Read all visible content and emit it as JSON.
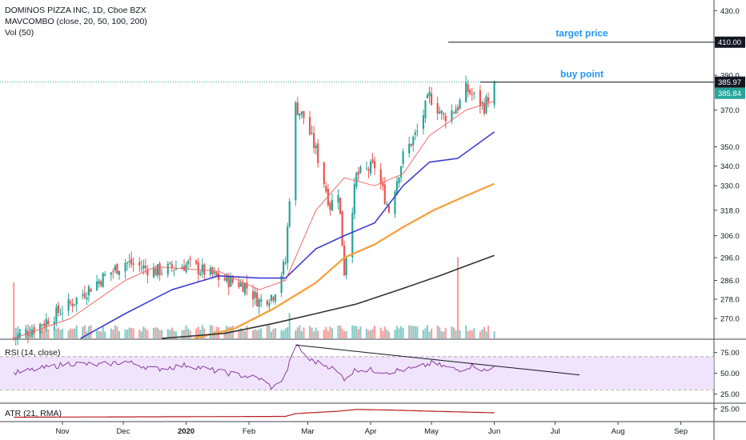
{
  "header": {
    "title": "DOMINOS PIZZA INC, 1D, Cboe BZX",
    "indicator_1": "MAVCOMBO (close, 20, 50, 100, 200)",
    "indicator_2": "Vol (50)"
  },
  "colors": {
    "up": "#26a69a",
    "down": "#ef5350",
    "ma20": "#f06a6a",
    "ma50": "#3f3fd0",
    "ma100": "#f5a442",
    "ma200": "#333333",
    "rsi": "#8a3d9e",
    "rsi_band": "#ead8fb",
    "atr": "#b71c1c",
    "annotation": "#2196f3"
  },
  "chart_data": [
    {
      "type": "candlestick",
      "title": "DOMINOS PIZZA INC, 1D, Cboe BZX",
      "y_scale": "log",
      "ylim": [
        262,
        437
      ],
      "y_ticks": [
        430,
        410,
        390,
        370,
        350,
        340,
        330,
        318,
        306,
        296,
        286,
        278,
        270
      ],
      "x_ticks": [
        "Nov",
        "Dec",
        "2020",
        "Feb",
        "Mar",
        "Apr",
        "May",
        "Jun",
        "Jul",
        "Aug",
        "Sep"
      ],
      "price_labels": {
        "last": "385.97",
        "second": "385.84",
        "target": "410.00"
      },
      "annotations": [
        {
          "text": "target price",
          "value": 410.0
        },
        {
          "text": "buy point",
          "value": 385.97
        }
      ],
      "anchors": [
        {
          "date": "2019-10-08",
          "close": 262
        },
        {
          "date": "2019-10-22",
          "close": 268
        },
        {
          "date": "2019-11-05",
          "close": 276
        },
        {
          "date": "2019-11-19",
          "close": 286
        },
        {
          "date": "2019-12-02",
          "close": 294
        },
        {
          "date": "2019-12-17",
          "close": 290
        },
        {
          "date": "2020-01-02",
          "close": 293
        },
        {
          "date": "2020-01-17",
          "close": 287
        },
        {
          "date": "2020-01-30",
          "close": 284
        },
        {
          "date": "2020-02-06",
          "close": 277
        },
        {
          "date": "2020-02-13",
          "close": 280
        },
        {
          "date": "2020-02-19",
          "close": 294
        },
        {
          "date": "2020-02-24",
          "close": 372
        },
        {
          "date": "2020-02-28",
          "close": 366
        },
        {
          "date": "2020-03-05",
          "close": 348
        },
        {
          "date": "2020-03-12",
          "close": 320
        },
        {
          "date": "2020-03-16",
          "close": 328
        },
        {
          "date": "2020-03-19",
          "close": 290
        },
        {
          "date": "2020-03-25",
          "close": 335
        },
        {
          "date": "2020-04-03",
          "close": 340
        },
        {
          "date": "2020-04-10",
          "close": 318
        },
        {
          "date": "2020-04-17",
          "close": 345
        },
        {
          "date": "2020-04-24",
          "close": 358
        },
        {
          "date": "2020-04-30",
          "close": 378
        },
        {
          "date": "2020-05-07",
          "close": 366
        },
        {
          "date": "2020-05-14",
          "close": 372
        },
        {
          "date": "2020-05-18",
          "close": 382
        },
        {
          "date": "2020-05-27",
          "close": 372
        },
        {
          "date": "2020-06-01",
          "close": 386
        }
      ],
      "moving_averages": [
        {
          "name": "MA 20",
          "points": [
            [
              "2019-10-08",
              262
            ],
            [
              "2019-11-05",
              270
            ],
            [
              "2019-12-02",
              286
            ],
            [
              "2019-12-17",
              292
            ],
            [
              "2020-01-17",
              290
            ],
            [
              "2020-02-06",
              282
            ],
            [
              "2020-02-19",
              286
            ],
            [
              "2020-03-05",
              318
            ],
            [
              "2020-03-19",
              334
            ],
            [
              "2020-04-03",
              330
            ],
            [
              "2020-04-17",
              336
            ],
            [
              "2020-04-30",
              356
            ],
            [
              "2020-05-18",
              370
            ],
            [
              "2020-06-01",
              375
            ]
          ]
        },
        {
          "name": "MA 50",
          "points": [
            [
              "2019-11-10",
              262
            ],
            [
              "2019-12-02",
              272
            ],
            [
              "2019-12-25",
              282
            ],
            [
              "2020-01-17",
              288
            ],
            [
              "2020-02-06",
              287
            ],
            [
              "2020-02-19",
              287
            ],
            [
              "2020-03-05",
              300
            ],
            [
              "2020-03-19",
              306
            ],
            [
              "2020-04-03",
              312
            ],
            [
              "2020-04-17",
              330
            ],
            [
              "2020-04-30",
              342
            ],
            [
              "2020-05-14",
              344
            ],
            [
              "2020-06-01",
              358
            ]
          ]
        },
        {
          "name": "MA 100",
          "points": [
            [
              "2020-01-05",
              262
            ],
            [
              "2020-01-25",
              266
            ],
            [
              "2020-02-13",
              274
            ],
            [
              "2020-03-05",
              285
            ],
            [
              "2020-03-19",
              296
            ],
            [
              "2020-04-03",
              302
            ],
            [
              "2020-04-17",
              310
            ],
            [
              "2020-05-02",
              318
            ],
            [
              "2020-05-18",
              325
            ],
            [
              "2020-06-01",
              331
            ]
          ]
        },
        {
          "name": "MA 200",
          "points": [
            [
              "2019-12-20",
              262
            ],
            [
              "2020-01-20",
              264
            ],
            [
              "2020-02-13",
              268
            ],
            [
              "2020-03-05",
              272
            ],
            [
              "2020-03-25",
              276
            ],
            [
              "2020-04-15",
              282
            ],
            [
              "2020-05-05",
              288
            ],
            [
              "2020-05-20",
              293
            ],
            [
              "2020-06-01",
              297
            ]
          ]
        }
      ]
    },
    {
      "type": "bar",
      "title": "Vol (50)",
      "note": "volume bars rise from the bottom of the price pane",
      "spikes": [
        {
          "date": "2019-10-08",
          "relative": 1.0
        },
        {
          "date": "2020-02-21",
          "relative": 0.45
        },
        {
          "date": "2020-05-14",
          "relative": 1.45
        }
      ]
    },
    {
      "type": "line",
      "title": "RSI (14, close)",
      "ylim": [
        15,
        90
      ],
      "y_ticks": [
        75,
        50,
        25
      ],
      "band": [
        30,
        70
      ],
      "anchors": [
        [
          "2019-10-08",
          50
        ],
        [
          "2019-10-22",
          56
        ],
        [
          "2019-11-05",
          62
        ],
        [
          "2019-11-19",
          60
        ],
        [
          "2019-12-02",
          64
        ],
        [
          "2019-12-17",
          55
        ],
        [
          "2020-01-02",
          60
        ],
        [
          "2020-01-17",
          52
        ],
        [
          "2020-02-06",
          44
        ],
        [
          "2020-02-13",
          32
        ],
        [
          "2020-02-19",
          48
        ],
        [
          "2020-02-24",
          84
        ],
        [
          "2020-03-02",
          66
        ],
        [
          "2020-03-12",
          58
        ],
        [
          "2020-03-19",
          44
        ],
        [
          "2020-03-25",
          55
        ],
        [
          "2020-04-10",
          52
        ],
        [
          "2020-04-24",
          56
        ],
        [
          "2020-05-01",
          62
        ],
        [
          "2020-05-14",
          54
        ],
        [
          "2020-05-22",
          60
        ],
        [
          "2020-05-28",
          52
        ],
        [
          "2020-06-01",
          58
        ]
      ],
      "trendline": [
        [
          "2020-02-24",
          84
        ],
        [
          "2020-07-13",
          48
        ]
      ]
    },
    {
      "type": "line",
      "title": "ATR (21, RMA)",
      "y_ticks": [
        25
      ],
      "anchors": [
        [
          "2019-10-08",
          5.5
        ],
        [
          "2020-02-19",
          6.5
        ],
        [
          "2020-02-24",
          10
        ],
        [
          "2020-03-16",
          13
        ],
        [
          "2020-03-25",
          15.2
        ],
        [
          "2020-04-10",
          14.5
        ],
        [
          "2020-05-01",
          13
        ],
        [
          "2020-06-01",
          11
        ]
      ]
    }
  ]
}
